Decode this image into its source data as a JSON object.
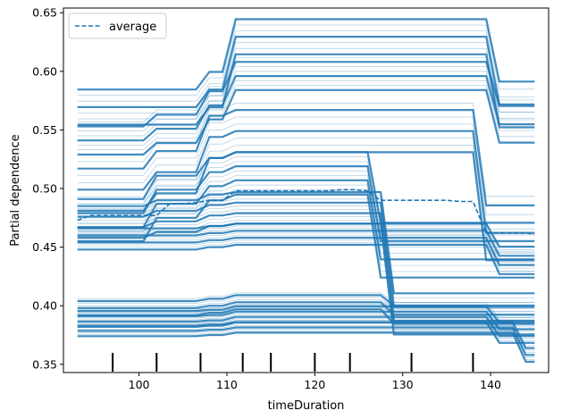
{
  "chart_data": {
    "type": "line",
    "title": "",
    "xlabel": "timeDuration",
    "ylabel": "Partial dependence",
    "xlim": [
      91.4,
      146.6
    ],
    "ylim": [
      0.343,
      0.654
    ],
    "xticks": [
      100,
      110,
      120,
      130,
      140
    ],
    "yticks": [
      0.35,
      0.4,
      0.45,
      0.5,
      0.55,
      0.6,
      0.65
    ],
    "xtick_labels": [
      "100",
      "110",
      "120",
      "130",
      "140"
    ],
    "ytick_labels": [
      "0.35",
      "0.40",
      "0.45",
      "0.50",
      "0.55",
      "0.60",
      "0.65"
    ],
    "grid": false,
    "legend": {
      "position": "top-left",
      "entries": [
        "average"
      ]
    },
    "line_color": "#1f77b4",
    "x": [
      93,
      94.5,
      96,
      97.5,
      99,
      100.5,
      102,
      103.5,
      105,
      106.5,
      108,
      109.5,
      111,
      112.5,
      114,
      115.5,
      117,
      118.5,
      120,
      121.5,
      123,
      124.5,
      126,
      127.5,
      129,
      130.5,
      132,
      133.5,
      135,
      136.5,
      138,
      139.5,
      141,
      142.5,
      144,
      145
    ],
    "series": [
      {
        "name": "average",
        "style": "dashed",
        "values": [
          0.473,
          0.477,
          0.477,
          0.477,
          0.477,
          0.477,
          0.477,
          0.487,
          0.487,
          0.488,
          0.49,
          0.49,
          0.498,
          0.498,
          0.498,
          0.498,
          0.498,
          0.498,
          0.498,
          0.498,
          0.499,
          0.499,
          0.498,
          0.49,
          0.49,
          0.49,
          0.49,
          0.49,
          0.49,
          0.489,
          0.489,
          0.462,
          0.462,
          0.462,
          0.462,
          0.461
        ]
      }
    ],
    "ice_curves_description_count": 110,
    "rug_positions": [
      97,
      102,
      107,
      111.8,
      115,
      120,
      124,
      131,
      138
    ],
    "ice_groups": [
      {
        "level": 0.632,
        "step": 0.005,
        "n": 7,
        "jumps": [
          0.0,
          0.015,
          0.045,
          0.0
        ],
        "drop_to": 0.575,
        "drop_x": 140.5
      },
      {
        "level": 0.6,
        "step": 0.004,
        "n": 8,
        "jumps": [
          0.01,
          0.02,
          0.025,
          0.0
        ],
        "drop_to": 0.56,
        "drop_x": 140.5
      },
      {
        "level": 0.555,
        "step": 0.006,
        "n": 8,
        "jumps": [
          0.015,
          0.03,
          0.005,
          0.0
        ],
        "drop_to": 0.47,
        "drop_x": 138.5
      },
      {
        "level": 0.515,
        "step": 0.004,
        "n": 10,
        "jumps": [
          0.02,
          0.015,
          0.005,
          0.0
        ],
        "drop_to": 0.45,
        "drop_x": 127.5
      },
      {
        "level": 0.485,
        "step": 0.003,
        "n": 10,
        "jumps": [
          0.005,
          0.005,
          0.002,
          0.0
        ],
        "drop_to": 0.395,
        "drop_x": 128.0
      },
      {
        "level": 0.462,
        "step": 0.002,
        "n": 10,
        "jumps": [
          0.0,
          0.002,
          0.002,
          0.0
        ],
        "drop_to": 0.44,
        "drop_x": 140.0
      },
      {
        "level": 0.405,
        "step": 0.002,
        "n": 8,
        "jumps": [
          0.0,
          0.002,
          0.003,
          0.0
        ],
        "drop_to": 0.395,
        "drop_x": 128.0
      },
      {
        "level": 0.395,
        "step": 0.0015,
        "n": 12,
        "jumps": [
          0.0,
          0.001,
          0.003,
          0.0
        ],
        "drop_to": 0.38,
        "drop_x": 141.0
      },
      {
        "level": 0.383,
        "step": 0.0015,
        "n": 8,
        "jumps": [
          0.0,
          0.001,
          0.002,
          0.0
        ],
        "drop_to": 0.36,
        "drop_x": 143.0
      }
    ]
  }
}
